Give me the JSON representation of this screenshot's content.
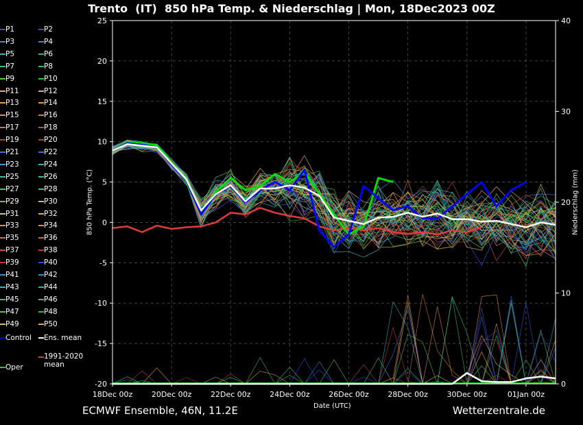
{
  "header": {
    "title": "Trento  (IT)  850 hPa Temp. & Niederschlag | Mon, 18Dec2023 00Z"
  },
  "footer": {
    "left": "ECMWF Ensemble, 46N, 11.2E",
    "right": "Wetterzentrale.de"
  },
  "chart_data": {
    "type": "line",
    "title": "Trento  (IT)  850 hPa Temp. & Niederschlag | Mon, 18Dec2023 00Z",
    "xlabel": "Date (UTC)",
    "ylabel": "850 hPa Temp. (°C)",
    "y2label": "Niederschlag (mm)",
    "ylim": [
      -20,
      25
    ],
    "y2lim": [
      0,
      40
    ],
    "x_tick_labels": [
      "18Dec 00z",
      "20Dec 00z",
      "22Dec 00z",
      "24Dec 00z",
      "26Dec 00z",
      "28Dec 00z",
      "30Dec 00z",
      "01Jan 00z"
    ],
    "y_ticks": [
      -20,
      -15,
      -10,
      -5,
      0,
      5,
      10,
      15,
      20,
      25
    ],
    "y2_ticks": [
      0,
      10,
      20,
      30,
      40
    ],
    "x_hours": [
      0,
      12,
      24,
      36,
      48,
      60,
      72,
      84,
      96,
      108,
      120,
      132,
      144,
      156,
      168,
      180,
      192,
      204,
      216,
      228,
      240,
      252,
      264,
      276,
      288,
      300,
      312,
      324,
      336,
      348,
      360
    ],
    "grid": true,
    "legend_placement": "left",
    "legend": [
      {
        "label": "P1",
        "color": "#3a4fd8"
      },
      {
        "label": "P2",
        "color": "#3a4fd8"
      },
      {
        "label": "P3",
        "color": "#3c8fd8"
      },
      {
        "label": "P4",
        "color": "#3c8fd8"
      },
      {
        "label": "P5",
        "color": "#3ab0c8"
      },
      {
        "label": "P6",
        "color": "#3ab0a0"
      },
      {
        "label": "P7",
        "color": "#3ac080"
      },
      {
        "label": "P8",
        "color": "#3ac080"
      },
      {
        "label": "P9",
        "color": "#60c840"
      },
      {
        "label": "P10",
        "color": "#40c040"
      },
      {
        "label": "P11",
        "color": "#e0b060"
      },
      {
        "label": "P12",
        "color": "#e0b060"
      },
      {
        "label": "P13",
        "color": "#e0a050"
      },
      {
        "label": "P14",
        "color": "#e0a050"
      },
      {
        "label": "P15",
        "color": "#e09060"
      },
      {
        "label": "P16",
        "color": "#d08040"
      },
      {
        "label": "P17",
        "color": "#d07060"
      },
      {
        "label": "P18",
        "color": "#c05050"
      },
      {
        "label": "P19",
        "color": "#c04030"
      },
      {
        "label": "P20",
        "color": "#c04030"
      },
      {
        "label": "P21",
        "color": "#4a6ad8"
      },
      {
        "label": "P22",
        "color": "#4a6ad8"
      },
      {
        "label": "P23",
        "color": "#40a0d0"
      },
      {
        "label": "P24",
        "color": "#40b0c0"
      },
      {
        "label": "P25",
        "color": "#40c090"
      },
      {
        "label": "P26",
        "color": "#40c090"
      },
      {
        "label": "P27",
        "color": "#50c860"
      },
      {
        "label": "P28",
        "color": "#50c860"
      },
      {
        "label": "P29",
        "color": "#70c840"
      },
      {
        "label": "P30",
        "color": "#d8c050"
      },
      {
        "label": "P31",
        "color": "#e0c060"
      },
      {
        "label": "P32",
        "color": "#e0b050"
      },
      {
        "label": "P33",
        "color": "#e09050"
      },
      {
        "label": "P34",
        "color": "#e09050"
      },
      {
        "label": "P35",
        "color": "#d07040"
      },
      {
        "label": "P36",
        "color": "#d07040"
      },
      {
        "label": "P37",
        "color": "#c05040"
      },
      {
        "label": "P38",
        "color": "#c04030"
      },
      {
        "label": "P39",
        "color": "#b83830"
      },
      {
        "label": "P40",
        "color": "#3a4fd8"
      },
      {
        "label": "P41",
        "color": "#3c8fd8"
      },
      {
        "label": "P42",
        "color": "#3c8fd8"
      },
      {
        "label": "P43",
        "color": "#3ab0c8"
      },
      {
        "label": "P44",
        "color": "#3ab0a0"
      },
      {
        "label": "P45",
        "color": "#3ac080"
      },
      {
        "label": "P46",
        "color": "#3ac080"
      },
      {
        "label": "P47",
        "color": "#60c840"
      },
      {
        "label": "P48",
        "color": "#40c040"
      },
      {
        "label": "P49",
        "color": "#e0c060"
      },
      {
        "label": "P50",
        "color": "#e0b060"
      },
      {
        "label": "Control",
        "color": "#0000ff"
      },
      {
        "label": "Ens. mean",
        "color": "#ffffff"
      },
      {
        "label": "1991-2020 mean",
        "color": "#e03c3c"
      },
      {
        "label": "Oper",
        "color": "#00e000"
      }
    ],
    "series": [
      {
        "name": "Oper",
        "color": "#00dd00",
        "values": [
          8.8,
          10.0,
          9.8,
          9.6,
          7.5,
          5.0,
          1.2,
          3.8,
          5.5,
          4.0,
          4.5,
          6.0,
          5.0,
          6.2,
          3.5,
          1.0,
          -1.5,
          -0.5,
          5.5,
          5.0,
          null,
          null,
          null,
          null,
          null,
          null,
          null,
          null,
          null,
          null,
          null
        ]
      },
      {
        "name": "Control",
        "color": "#0000ff",
        "values": [
          8.9,
          9.8,
          9.6,
          9.3,
          7.2,
          5.2,
          1.0,
          3.5,
          4.5,
          2.5,
          4.0,
          5.0,
          4.0,
          6.5,
          -1.0,
          -3.0,
          -1.5,
          4.5,
          3.0,
          1.5,
          2.0,
          0.5,
          0.5,
          2.0,
          3.5,
          5.0,
          2.0,
          4.0,
          5.0,
          null,
          null
        ]
      },
      {
        "name": "Ens. mean",
        "color": "#ffffff",
        "values": [
          8.9,
          9.7,
          9.5,
          9.3,
          7.3,
          5.3,
          1.5,
          3.5,
          4.6,
          2.6,
          4.2,
          4.2,
          4.6,
          4.3,
          3.3,
          0.6,
          0.2,
          -0.2,
          0.6,
          0.7,
          1.2,
          0.7,
          1.1,
          0.4,
          0.4,
          0.1,
          0.2,
          -0.2,
          -0.6,
          0.0,
          -0.3
        ]
      },
      {
        "name": "1991-2020 mean",
        "color": "#e03c3c",
        "values": [
          -0.7,
          -0.5,
          -1.2,
          -0.4,
          -0.8,
          -0.6,
          -0.5,
          0.0,
          1.2,
          1.0,
          1.8,
          1.2,
          0.8,
          0.5,
          -0.5,
          -1.0,
          -0.7,
          -1.0,
          -0.7,
          -1.2,
          -1.4,
          -1.2,
          -1.5,
          -1.0,
          -1.2,
          -0.6,
          null,
          null,
          null,
          null,
          null
        ]
      }
    ],
    "precip_mean": [
      0,
      0,
      0,
      0,
      0,
      0,
      0,
      0,
      0,
      0,
      0,
      0,
      0,
      0,
      0,
      0,
      0,
      0,
      0,
      0,
      0,
      0,
      0,
      0,
      1.2,
      0.3,
      0.2,
      0.2,
      0.6,
      0.8,
      0.6
    ]
  }
}
